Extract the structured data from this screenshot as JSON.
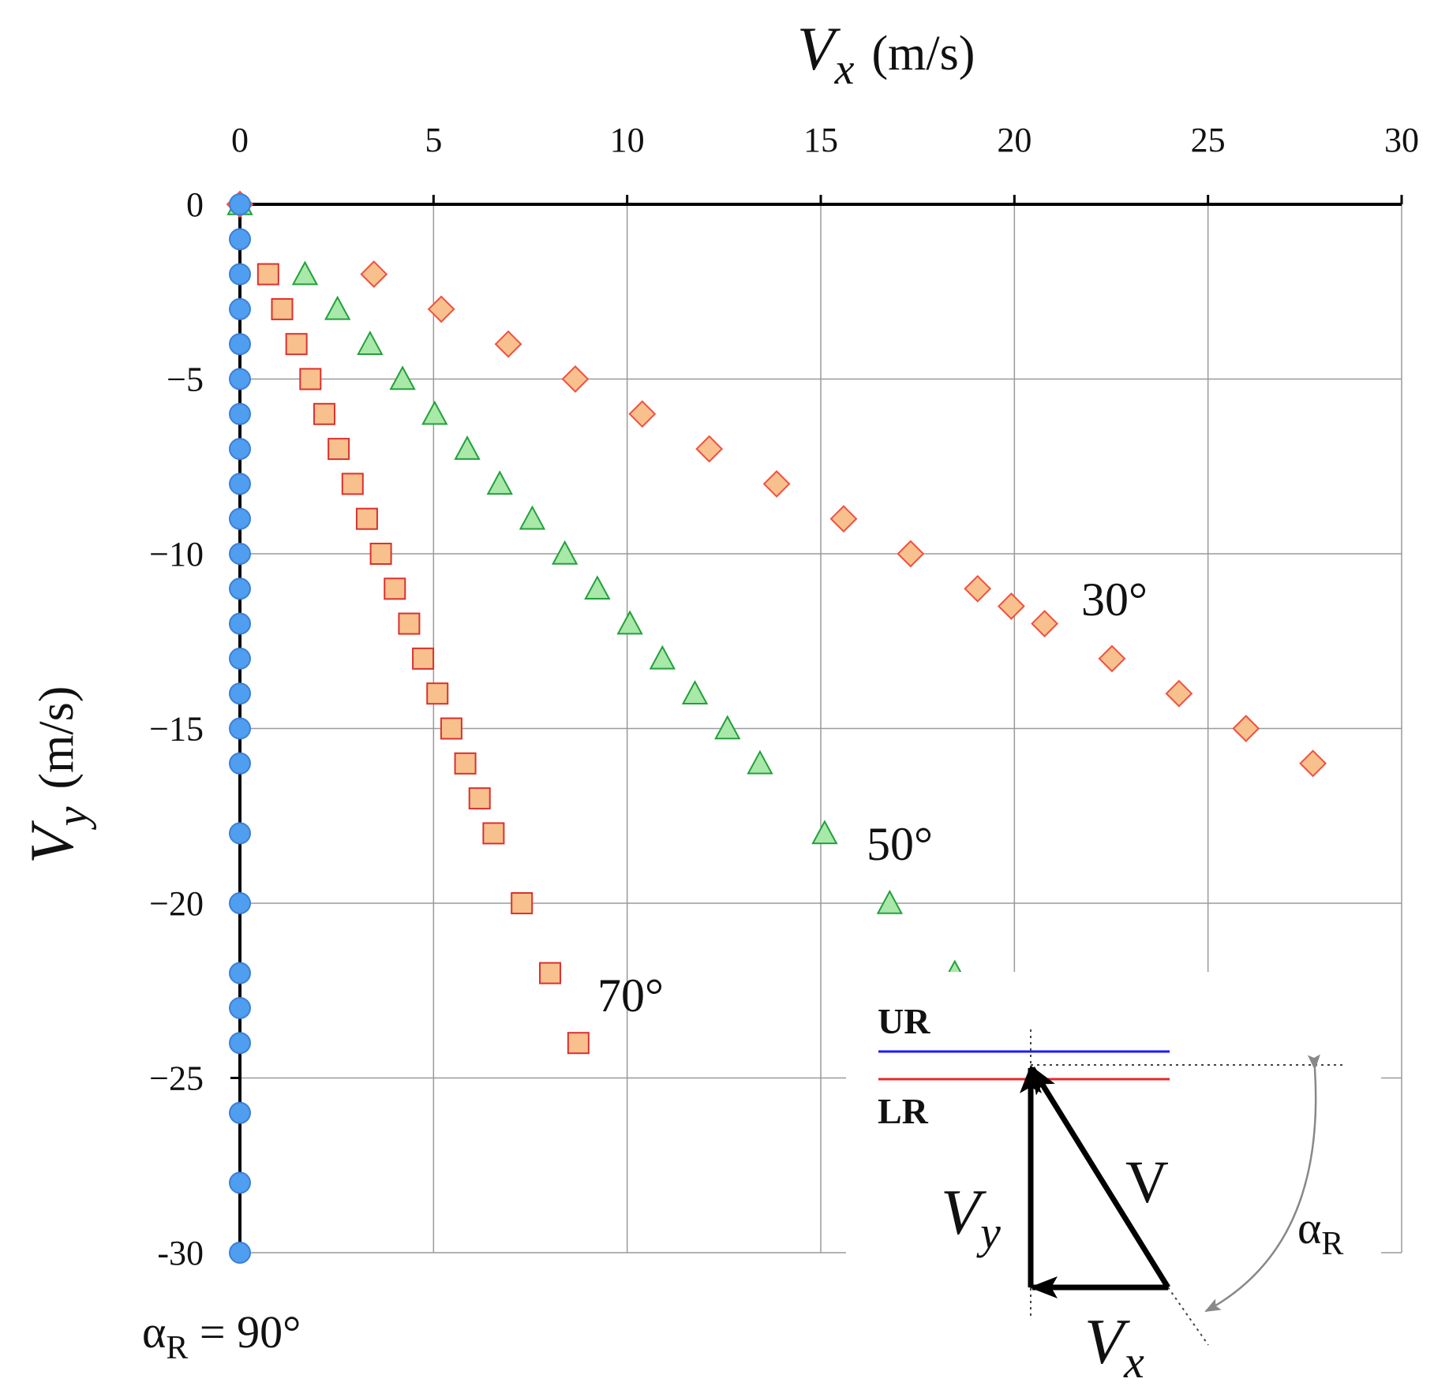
{
  "chart_data": {
    "type": "scatter",
    "title": "",
    "xlabel": {
      "symbol": "V",
      "subscript": "x",
      "unit": "(m/s)"
    },
    "ylabel": {
      "symbol": "V",
      "subscript": "y",
      "unit": "(m/s)"
    },
    "xlim": [
      0,
      30
    ],
    "ylim": [
      -30,
      0
    ],
    "x_ticks": [
      0,
      5,
      10,
      15,
      20,
      25,
      30
    ],
    "y_ticks": [
      0,
      -5,
      -10,
      -15,
      -20,
      -25,
      -30
    ],
    "x_tick_labels": [
      "0",
      "5",
      "10",
      "15",
      "20",
      "25",
      "30"
    ],
    "y_tick_labels": [
      "0",
      "−5",
      "−10",
      "−15",
      "−20",
      "−25",
      "-30"
    ],
    "grid": true,
    "series": [
      {
        "name": "αR = 90°",
        "label": "αR = 90°",
        "marker": "circle",
        "fill": "#4f9ef0",
        "stroke": "#3d7fd9",
        "points": [
          [
            0,
            0
          ],
          [
            0,
            -1
          ],
          [
            0,
            -2
          ],
          [
            0,
            -3
          ],
          [
            0,
            -4
          ],
          [
            0,
            -5
          ],
          [
            0,
            -6
          ],
          [
            0,
            -7
          ],
          [
            0,
            -8
          ],
          [
            0,
            -9
          ],
          [
            0,
            -10
          ],
          [
            0,
            -11
          ],
          [
            0,
            -12
          ],
          [
            0,
            -13
          ],
          [
            0,
            -14
          ],
          [
            0,
            -15
          ],
          [
            0,
            -16
          ],
          [
            0,
            -18
          ],
          [
            0,
            -20
          ],
          [
            0,
            -22
          ],
          [
            0,
            -23
          ],
          [
            0,
            -24
          ],
          [
            0,
            -26
          ],
          [
            0,
            -28
          ],
          [
            0,
            -30
          ]
        ]
      },
      {
        "name": "70°",
        "label": "70°",
        "marker": "square",
        "fill": "#f8c08c",
        "stroke": "#d9322f",
        "points": [
          [
            0.73,
            -2
          ],
          [
            1.09,
            -3
          ],
          [
            1.46,
            -4
          ],
          [
            1.82,
            -5
          ],
          [
            2.18,
            -6
          ],
          [
            2.55,
            -7
          ],
          [
            2.91,
            -8
          ],
          [
            3.28,
            -9
          ],
          [
            3.64,
            -10
          ],
          [
            4.0,
            -11
          ],
          [
            4.37,
            -12
          ],
          [
            4.73,
            -13
          ],
          [
            5.1,
            -14
          ],
          [
            5.46,
            -15
          ],
          [
            5.82,
            -16
          ],
          [
            6.19,
            -17
          ],
          [
            6.55,
            -18
          ],
          [
            7.28,
            -20
          ],
          [
            8.01,
            -22
          ],
          [
            8.74,
            -24
          ]
        ]
      },
      {
        "name": "50°",
        "label": "50°",
        "marker": "triangle",
        "fill": "#a8e8a8",
        "stroke": "#22a03c",
        "points": [
          [
            0,
            0
          ],
          [
            1.68,
            -2
          ],
          [
            2.52,
            -3
          ],
          [
            3.36,
            -4
          ],
          [
            4.2,
            -5
          ],
          [
            5.03,
            -6
          ],
          [
            5.87,
            -7
          ],
          [
            6.71,
            -8
          ],
          [
            7.55,
            -9
          ],
          [
            8.39,
            -10
          ],
          [
            9.23,
            -11
          ],
          [
            10.07,
            -12
          ],
          [
            10.91,
            -13
          ],
          [
            11.75,
            -14
          ],
          [
            12.59,
            -15
          ],
          [
            13.43,
            -16
          ],
          [
            15.1,
            -18
          ],
          [
            16.78,
            -20
          ],
          [
            18.46,
            -22
          ]
        ]
      },
      {
        "name": "30°",
        "label": "30°",
        "marker": "diamond",
        "fill": "#f8c08c",
        "stroke": "#f05040",
        "points": [
          [
            0,
            0
          ],
          [
            3.46,
            -2
          ],
          [
            5.2,
            -3
          ],
          [
            6.93,
            -4
          ],
          [
            8.66,
            -5
          ],
          [
            10.39,
            -6
          ],
          [
            12.12,
            -7
          ],
          [
            13.86,
            -8
          ],
          [
            15.59,
            -9
          ],
          [
            17.32,
            -10
          ],
          [
            19.05,
            -11
          ],
          [
            19.92,
            -11.5
          ],
          [
            20.78,
            -12
          ],
          [
            22.52,
            -13
          ],
          [
            24.25,
            -14
          ],
          [
            25.98,
            -15
          ],
          [
            27.71,
            -16
          ]
        ]
      }
    ]
  },
  "inset": {
    "ur_label": "UR",
    "lr_label": "LR",
    "ur_color": "#1a1aff",
    "lr_color": "#e8282a",
    "v_label": "V",
    "vy_symbol": "V",
    "vy_subscript": "y",
    "vx_symbol": "V",
    "vx_subscript": "x",
    "alpha_symbol": "α",
    "alpha_subscript": "R"
  },
  "footnote": {
    "alpha_symbol": "α",
    "alpha_subscript": "R",
    "value_text": " = 90°"
  }
}
